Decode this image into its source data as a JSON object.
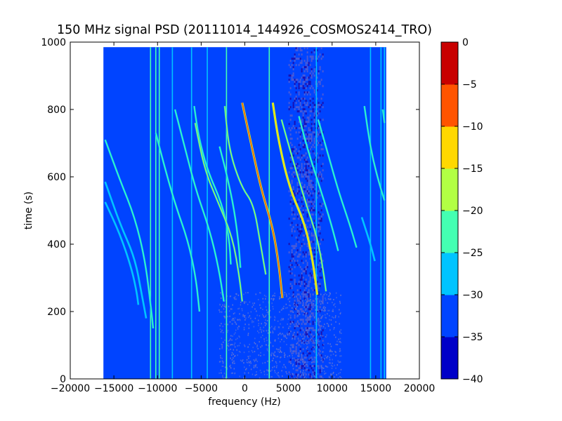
{
  "chart_data": {
    "type": "heatmap",
    "title": "150 MHz signal PSD (20111014_144926_COSMOS2414_TRO)",
    "xlabel": "frequency (Hz)",
    "ylabel": "time (s)",
    "xlim": [
      -20000,
      20000
    ],
    "ylim": [
      0,
      1000
    ],
    "xticks": [
      -20000,
      -15000,
      -10000,
      -5000,
      0,
      5000,
      10000,
      15000,
      20000
    ],
    "xtick_labels": [
      "−20000",
      "−15000",
      "−10000",
      "−5000",
      "0",
      "5000",
      "10000",
      "15000",
      "20000"
    ],
    "yticks": [
      0,
      200,
      400,
      600,
      800,
      1000
    ],
    "ytick_labels": [
      "0",
      "200",
      "400",
      "600",
      "800",
      "1000"
    ],
    "data_extent": {
      "x": [
        -16200,
        16200
      ],
      "y": [
        0,
        985
      ]
    },
    "background_level": -35,
    "noise_band_hz": [
      5000,
      9000
    ],
    "colorbar": {
      "levels": [
        -40,
        -35,
        -30,
        -25,
        -20,
        -15,
        -10,
        -5,
        0
      ],
      "tick_labels": [
        "−40",
        "−35",
        "−30",
        "−25",
        "−20",
        "−15",
        "−10",
        "−5",
        "0"
      ],
      "colors": [
        "#0000c8",
        "#0044ff",
        "#00c4ff",
        "#44ffb2",
        "#b2ff44",
        "#ffd800",
        "#ff5400",
        "#c80000"
      ]
    },
    "vertical_lines": [
      {
        "freq": -10800,
        "level": -22
      },
      {
        "freq": -10200,
        "level": -22
      },
      {
        "freq": -9800,
        "level": -25
      },
      {
        "freq": -8300,
        "level": -28
      },
      {
        "freq": -6100,
        "level": -27
      },
      {
        "freq": -4300,
        "level": -28
      },
      {
        "freq": -2100,
        "level": -25
      },
      {
        "freq": 2800,
        "level": -25
      },
      {
        "freq": 8200,
        "level": -27
      },
      {
        "freq": 14400,
        "level": -28
      },
      {
        "freq": 15600,
        "level": -27
      },
      {
        "freq": 16000,
        "level": -28
      }
    ],
    "doppler_tracks": [
      {
        "name": "",
        "points": [
          [
            -16000,
            710
          ],
          [
            -14300,
            590
          ],
          [
            -12600,
            480
          ],
          [
            -11400,
            350
          ],
          [
            -10700,
            200
          ],
          [
            -10500,
            150
          ]
        ],
        "level": -25
      },
      {
        "name": "",
        "points": [
          [
            -16000,
            585
          ],
          [
            -14300,
            460
          ],
          [
            -12600,
            360
          ],
          [
            -11800,
            250
          ],
          [
            -11300,
            180
          ]
        ],
        "level": -27
      },
      {
        "name": "",
        "points": [
          [
            -16000,
            525
          ],
          [
            -14300,
            430
          ],
          [
            -13000,
            330
          ],
          [
            -12400,
            260
          ],
          [
            -12200,
            220
          ]
        ],
        "level": -27
      },
      {
        "name": "",
        "points": [
          [
            -10200,
            730
          ],
          [
            -9300,
            640
          ],
          [
            -8000,
            520
          ],
          [
            -6500,
            410
          ],
          [
            -5600,
            300
          ],
          [
            -5200,
            200
          ]
        ],
        "level": -25
      },
      {
        "name": "",
        "points": [
          [
            -8000,
            800
          ],
          [
            -7000,
            700
          ],
          [
            -5600,
            560
          ],
          [
            -4000,
            440
          ],
          [
            -3000,
            330
          ],
          [
            -2400,
            230
          ]
        ],
        "level": -22
      },
      {
        "name": "",
        "points": [
          [
            -5800,
            810
          ],
          [
            -5300,
            720
          ],
          [
            -4300,
            620
          ],
          [
            -2600,
            520
          ],
          [
            -1800,
            420
          ],
          [
            -1600,
            340
          ]
        ],
        "level": -22
      },
      {
        "name": "",
        "points": [
          [
            -5700,
            760
          ],
          [
            -4600,
            620
          ],
          [
            -3000,
            520
          ],
          [
            -1400,
            420
          ],
          [
            -600,
            300
          ],
          [
            -300,
            230
          ]
        ],
        "level": -20
      },
      {
        "name": "",
        "points": [
          [
            -2300,
            810
          ],
          [
            -1800,
            680
          ],
          [
            -400,
            570
          ],
          [
            1000,
            520
          ],
          [
            1800,
            400
          ],
          [
            2400,
            310
          ]
        ],
        "level": -20
      },
      {
        "name": "",
        "points": [
          [
            -2900,
            690
          ],
          [
            -2000,
            600
          ],
          [
            -1200,
            500
          ],
          [
            -700,
            400
          ],
          [
            -500,
            330
          ]
        ],
        "level": -23
      },
      {
        "name": "",
        "points": [
          [
            -300,
            820
          ],
          [
            700,
            700
          ],
          [
            1900,
            560
          ],
          [
            3200,
            450
          ],
          [
            3900,
            340
          ],
          [
            4300,
            240
          ]
        ],
        "level": -10
      },
      {
        "name": "",
        "points": [
          [
            3200,
            820
          ],
          [
            3900,
            700
          ],
          [
            5200,
            560
          ],
          [
            6900,
            460
          ],
          [
            7800,
            350
          ],
          [
            8300,
            250
          ]
        ],
        "level": -15
      },
      {
        "name": "",
        "points": [
          [
            4200,
            770
          ],
          [
            5400,
            660
          ],
          [
            7000,
            520
          ],
          [
            8300,
            420
          ],
          [
            9000,
            320
          ],
          [
            9300,
            260
          ]
        ],
        "level": -20
      },
      {
        "name": "",
        "points": [
          [
            6200,
            780
          ],
          [
            7200,
            680
          ],
          [
            8700,
            560
          ],
          [
            9900,
            460
          ],
          [
            10700,
            380
          ]
        ],
        "level": -22
      },
      {
        "name": "",
        "points": [
          [
            8400,
            770
          ],
          [
            9400,
            680
          ],
          [
            10700,
            560
          ],
          [
            12000,
            460
          ],
          [
            12800,
            390
          ]
        ],
        "level": -25
      },
      {
        "name": "",
        "points": [
          [
            13700,
            810
          ],
          [
            14200,
            720
          ],
          [
            14700,
            650
          ],
          [
            15400,
            580
          ],
          [
            16000,
            530
          ]
        ],
        "level": -22
      },
      {
        "name": "",
        "points": [
          [
            15800,
            800
          ],
          [
            16000,
            760
          ]
        ],
        "level": -25
      },
      {
        "name": "",
        "points": [
          [
            13400,
            480
          ],
          [
            14400,
            400
          ],
          [
            14900,
            350
          ]
        ],
        "level": -27
      }
    ]
  }
}
